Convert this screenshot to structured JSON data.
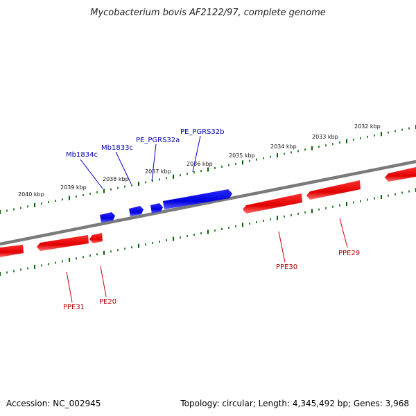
{
  "title": "Mycobacterium bovis AF2122/97, complete genome",
  "footer": {
    "accession": "Accession: NC_002945",
    "summary": "Topology: circular; Length: 4,345,492 bp; Genes: 3,968"
  },
  "colors": {
    "forward": "#0000ff",
    "reverse": "#ff0000",
    "backbone": "#808080",
    "ticks": "#006400"
  },
  "ticks": [
    {
      "label": "2040 kbp"
    },
    {
      "label": "2039 kbp"
    },
    {
      "label": "2038 kbp"
    },
    {
      "label": "2037 kbp"
    },
    {
      "label": "2036 kbp"
    },
    {
      "label": "2035 kbp"
    },
    {
      "label": "2034 kbp"
    },
    {
      "label": "2033 kbp"
    },
    {
      "label": "2032 kbp"
    }
  ],
  "forward_genes": [
    {
      "name": "Mb1834c",
      "labeled": true
    },
    {
      "name": "Mb1833c",
      "labeled": true
    },
    {
      "name": "PE_PGRS32a",
      "labeled": true
    },
    {
      "name": "PE_PGRS32b",
      "labeled": true
    }
  ],
  "reverse_genes": [
    {
      "name": "",
      "labeled": false
    },
    {
      "name": "PPE31",
      "labeled": true
    },
    {
      "name": "PE20",
      "labeled": true
    },
    {
      "name": "PPE30",
      "labeled": true
    },
    {
      "name": "PPE29",
      "labeled": true
    },
    {
      "name": "",
      "labeled": false
    }
  ]
}
